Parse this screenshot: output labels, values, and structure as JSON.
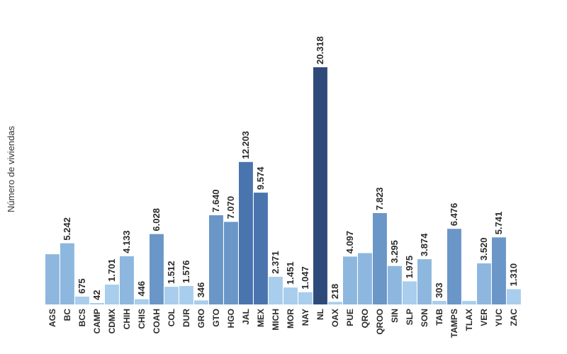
{
  "chart_data": {
    "type": "bar",
    "title": "",
    "xlabel": "",
    "ylabel": "Número de viviendas",
    "ylim": [
      0,
      21000
    ],
    "grid": false,
    "legend": "none",
    "categories": [
      "AGS",
      "BC",
      "BCS",
      "CAMP",
      "CDMX",
      "CHIH",
      "CHIS",
      "COAH",
      "COL",
      "DUR",
      "GRO",
      "GTO",
      "HGO",
      "JAL",
      "MEX",
      "MICH",
      "MOR",
      "NAY",
      "NL",
      "OAX",
      "PUE",
      "QRO",
      "QROO",
      "SIN",
      "SLP",
      "SON",
      "TAB",
      "TAMPS",
      "TLAX",
      "VER",
      "YUC",
      "ZAC"
    ],
    "values": [
      4300,
      5242,
      675,
      42,
      1701,
      4133,
      446,
      6028,
      1512,
      1576,
      346,
      7640,
      7070,
      12203,
      9574,
      2371,
      1451,
      1047,
      20318,
      218,
      4097,
      4400,
      7823,
      3295,
      1975,
      3874,
      303,
      6476,
      300,
      3520,
      5741,
      1310
    ],
    "labels": [
      "",
      "5.242",
      "675",
      "42",
      "1.701",
      "4.133",
      "446",
      "6.028",
      "1.512",
      "1.576",
      "346",
      "7.640",
      "7.070",
      "12.203",
      "9.574",
      "2.371",
      "1.451",
      "1.047",
      "20.318",
      "218",
      "4.097",
      "",
      "7.823",
      "3.295",
      "1.975",
      "3.874",
      "303",
      "6.476",
      "",
      "3.520",
      "5.741",
      "1.310"
    ],
    "colors": {
      "light": "#a9cdec",
      "mid": "#8db7de",
      "strong": "#6a96c8",
      "darker": "#4a74ae",
      "darkest": "#2e4a7a"
    }
  }
}
